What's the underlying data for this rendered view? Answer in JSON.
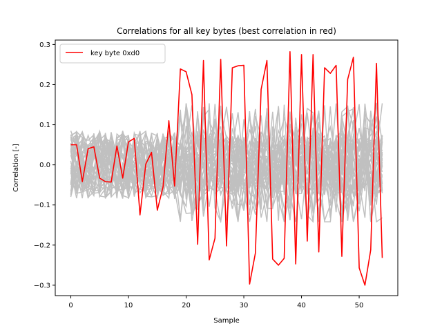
{
  "chart_data": {
    "type": "line",
    "title": "Correlations for all key bytes (best correlation in red)",
    "xlabel": "Sample",
    "ylabel": "Correlation [-]",
    "xlim": [
      -2.7,
      56.7
    ],
    "ylim": [
      -0.326,
      0.311
    ],
    "xticks": [
      0,
      10,
      20,
      30,
      40,
      50
    ],
    "yticks": [
      -0.3,
      -0.2,
      -0.1,
      0.0,
      0.1,
      0.2,
      0.3
    ],
    "xtick_labels": [
      "0",
      "10",
      "20",
      "30",
      "40",
      "50"
    ],
    "ytick_labels": [
      "−0.3",
      "−0.2",
      "−0.1",
      "0.0",
      "0.1",
      "0.2",
      "0.3"
    ],
    "grid": false,
    "legend": {
      "position": "top-left",
      "entries": [
        "key byte 0xd0"
      ]
    },
    "series": [
      {
        "name": "key byte 0xd0",
        "color": "#ff0000",
        "highlight": true,
        "x": [
          0,
          1,
          2,
          3,
          4,
          5,
          6,
          7,
          8,
          9,
          10,
          11,
          12,
          13,
          14,
          15,
          16,
          17,
          18,
          19,
          20,
          21,
          22,
          23,
          24,
          25,
          26,
          27,
          28,
          29,
          30,
          31,
          32,
          33,
          34,
          35,
          36,
          37,
          38,
          39,
          40,
          41,
          42,
          43,
          44,
          45,
          46,
          47,
          48,
          49,
          50,
          51,
          52,
          53,
          54
        ],
        "y": [
          0.05,
          0.05,
          -0.042,
          0.04,
          0.045,
          -0.033,
          -0.042,
          -0.043,
          0.047,
          -0.033,
          0.057,
          0.066,
          -0.125,
          0.002,
          0.031,
          -0.113,
          -0.055,
          0.11,
          -0.053,
          0.239,
          0.232,
          0.175,
          -0.198,
          0.26,
          -0.237,
          -0.183,
          0.263,
          -0.202,
          0.242,
          0.247,
          0.248,
          -0.297,
          -0.22,
          0.188,
          0.26,
          -0.235,
          -0.25,
          -0.233,
          0.282,
          -0.247,
          0.275,
          -0.19,
          0.275,
          -0.217,
          0.242,
          0.228,
          0.248,
          -0.228,
          0.213,
          0.268,
          -0.257,
          -0.3,
          -0.212,
          0.253,
          -0.232
        ]
      }
    ],
    "background_series": {
      "description": "",
      "color": "#c0c0c0",
      "count": 40,
      "x_range": [
        0,
        54
      ],
      "y_range": [
        -0.142,
        0.178
      ]
    }
  }
}
